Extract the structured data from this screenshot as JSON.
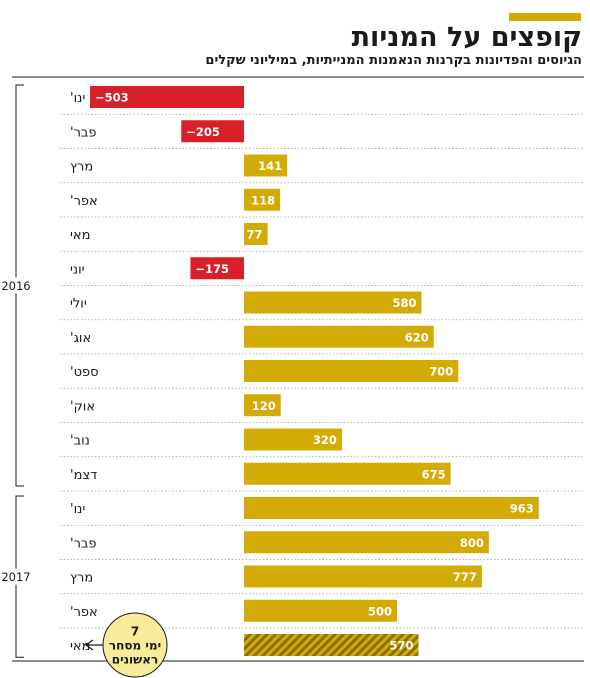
{
  "colors": {
    "positive": "#d3ab06",
    "negative": "#d8202a",
    "text": "#1a1a1a",
    "grid": "#9a9a9a",
    "callout_fill": "#f8eb9c"
  },
  "chart_data": {
    "type": "bar",
    "orientation": "horizontal",
    "title": "קופצים על המניות",
    "subtitle": "הגיוסים והפדיונות בקרנות הנאמנות המנייתיות, במיליוני שקלים",
    "categories": [
      "ינו'",
      "פבר'",
      "מרץ",
      "אפר'",
      "מאי",
      "יוני",
      "יולי",
      "אוג'",
      "ספט'",
      "אוק'",
      "נוב'",
      "דצמ'",
      "ינו'",
      "פבר'",
      "מרץ",
      "אפר'",
      "מאי"
    ],
    "values": [
      -503,
      -205,
      141,
      118,
      77,
      -175,
      580,
      620,
      700,
      120,
      320,
      675,
      963,
      800,
      777,
      500,
      570
    ],
    "value_labels": [
      "−503",
      "−205",
      "141",
      "118",
      "77",
      "−175",
      "580",
      "620",
      "700",
      "120",
      "320",
      "675",
      "963",
      "800",
      "777",
      "500",
      "570"
    ],
    "groups": [
      {
        "label": "2016",
        "start": 0,
        "end": 11
      },
      {
        "label": "2017",
        "start": 12,
        "end": 16
      }
    ],
    "partial_index": 16,
    "callout": {
      "lines": [
        "7",
        "ימי מסחר",
        "ראשונים"
      ],
      "target_index": 16
    },
    "xlim": [
      -503,
      963
    ],
    "grid": true
  }
}
